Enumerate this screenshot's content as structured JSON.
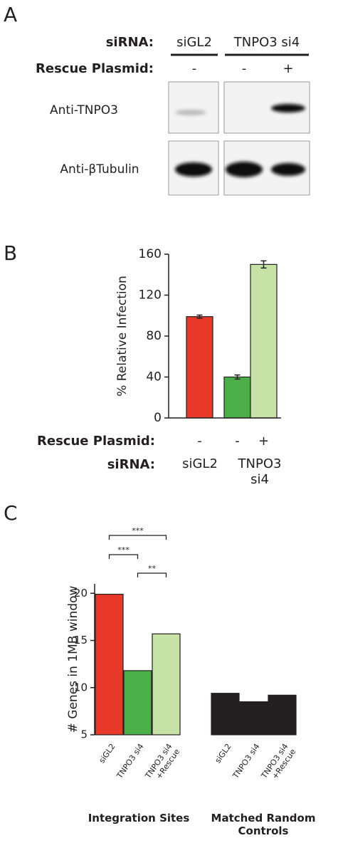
{
  "panel_a": {
    "label": "A",
    "sirna_label": "siRNA:",
    "sirna": [
      "siGL2",
      "TNPO3 si4"
    ],
    "rescue_label": "Rescue Plasmid:",
    "rescue": [
      "-",
      "-",
      "+"
    ],
    "rows": [
      "Anti-TNPO3",
      "Anti-βTubulin"
    ]
  },
  "chart_data": [
    {
      "type": "bar",
      "panel": "B",
      "ylabel": "% Relative Infection",
      "values": [
        99,
        40,
        150
      ],
      "errors": [
        1.5,
        2,
        3.5
      ],
      "colors": [
        "#e8392a",
        "#4daf4a",
        "#c6e2a6"
      ],
      "rescue_label": "Rescue Plasmid:",
      "rescue": [
        "-",
        "-",
        "+"
      ],
      "sirna_label": "siRNA:",
      "sirna_groups": [
        "siGL2",
        "TNPO3 si4"
      ],
      "ylim": [
        0,
        160
      ],
      "yticks": [
        0,
        40,
        80,
        120,
        160
      ]
    },
    {
      "type": "bar",
      "panel": "C",
      "ylabel": "# Genes in 1MB window",
      "categories": [
        "siGL2",
        "TNPO3 si4",
        "TNPO3 si4 +Rescue",
        "siGL2",
        "TNPO3 si4",
        "TNPO3 si4 +Rescue"
      ],
      "values": [
        19.9,
        11.8,
        15.7,
        9.4,
        8.5,
        9.2
      ],
      "colors": [
        "#e8392a",
        "#4daf4a",
        "#c6e2a6",
        "#231f20",
        "#231f20",
        "#231f20"
      ],
      "groups": [
        "Integration Sites",
        "Matched Random Controls"
      ],
      "significance": [
        "***",
        "***",
        "**"
      ],
      "ylim": [
        5,
        21
      ],
      "yticks": [
        5,
        10,
        15,
        20
      ]
    }
  ]
}
